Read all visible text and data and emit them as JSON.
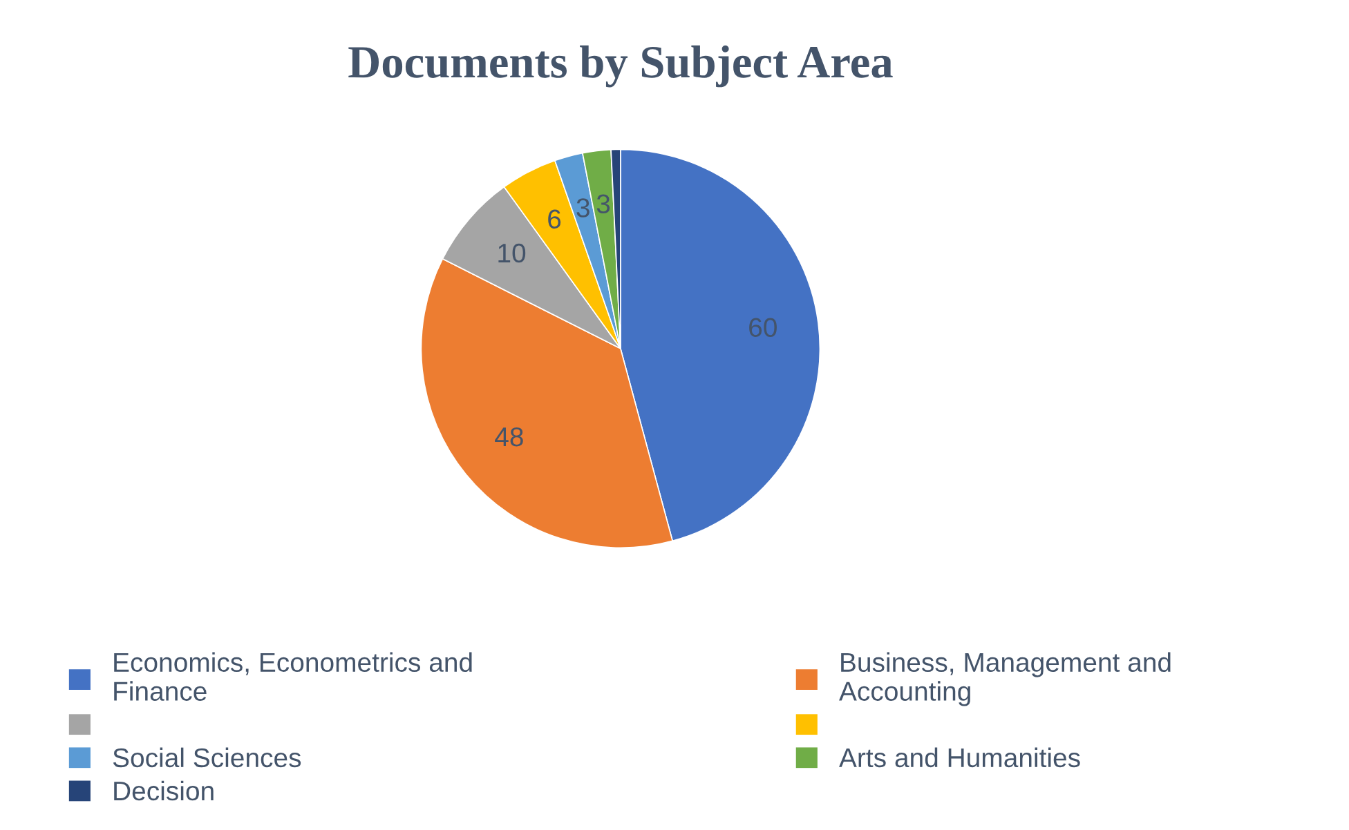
{
  "chart_data": {
    "type": "pie",
    "title": "Documents by Subject Area",
    "categories": [
      "Economics, Econometrics and\nFinance",
      "Business, Management and\nAccounting",
      null,
      null,
      "Social Sciences",
      "Arts and Humanities",
      "Decision"
    ],
    "values": [
      60,
      48,
      10,
      6,
      3,
      3,
      1
    ],
    "value_labels": [
      "60",
      "48",
      "10",
      "6",
      "3",
      "3",
      null
    ],
    "colors": [
      "#4472c4",
      "#ed7d31",
      "#a5a5a5",
      "#ffc000",
      "#5b9bd5",
      "#70ad47",
      "#264478"
    ],
    "legend": "bottom"
  }
}
